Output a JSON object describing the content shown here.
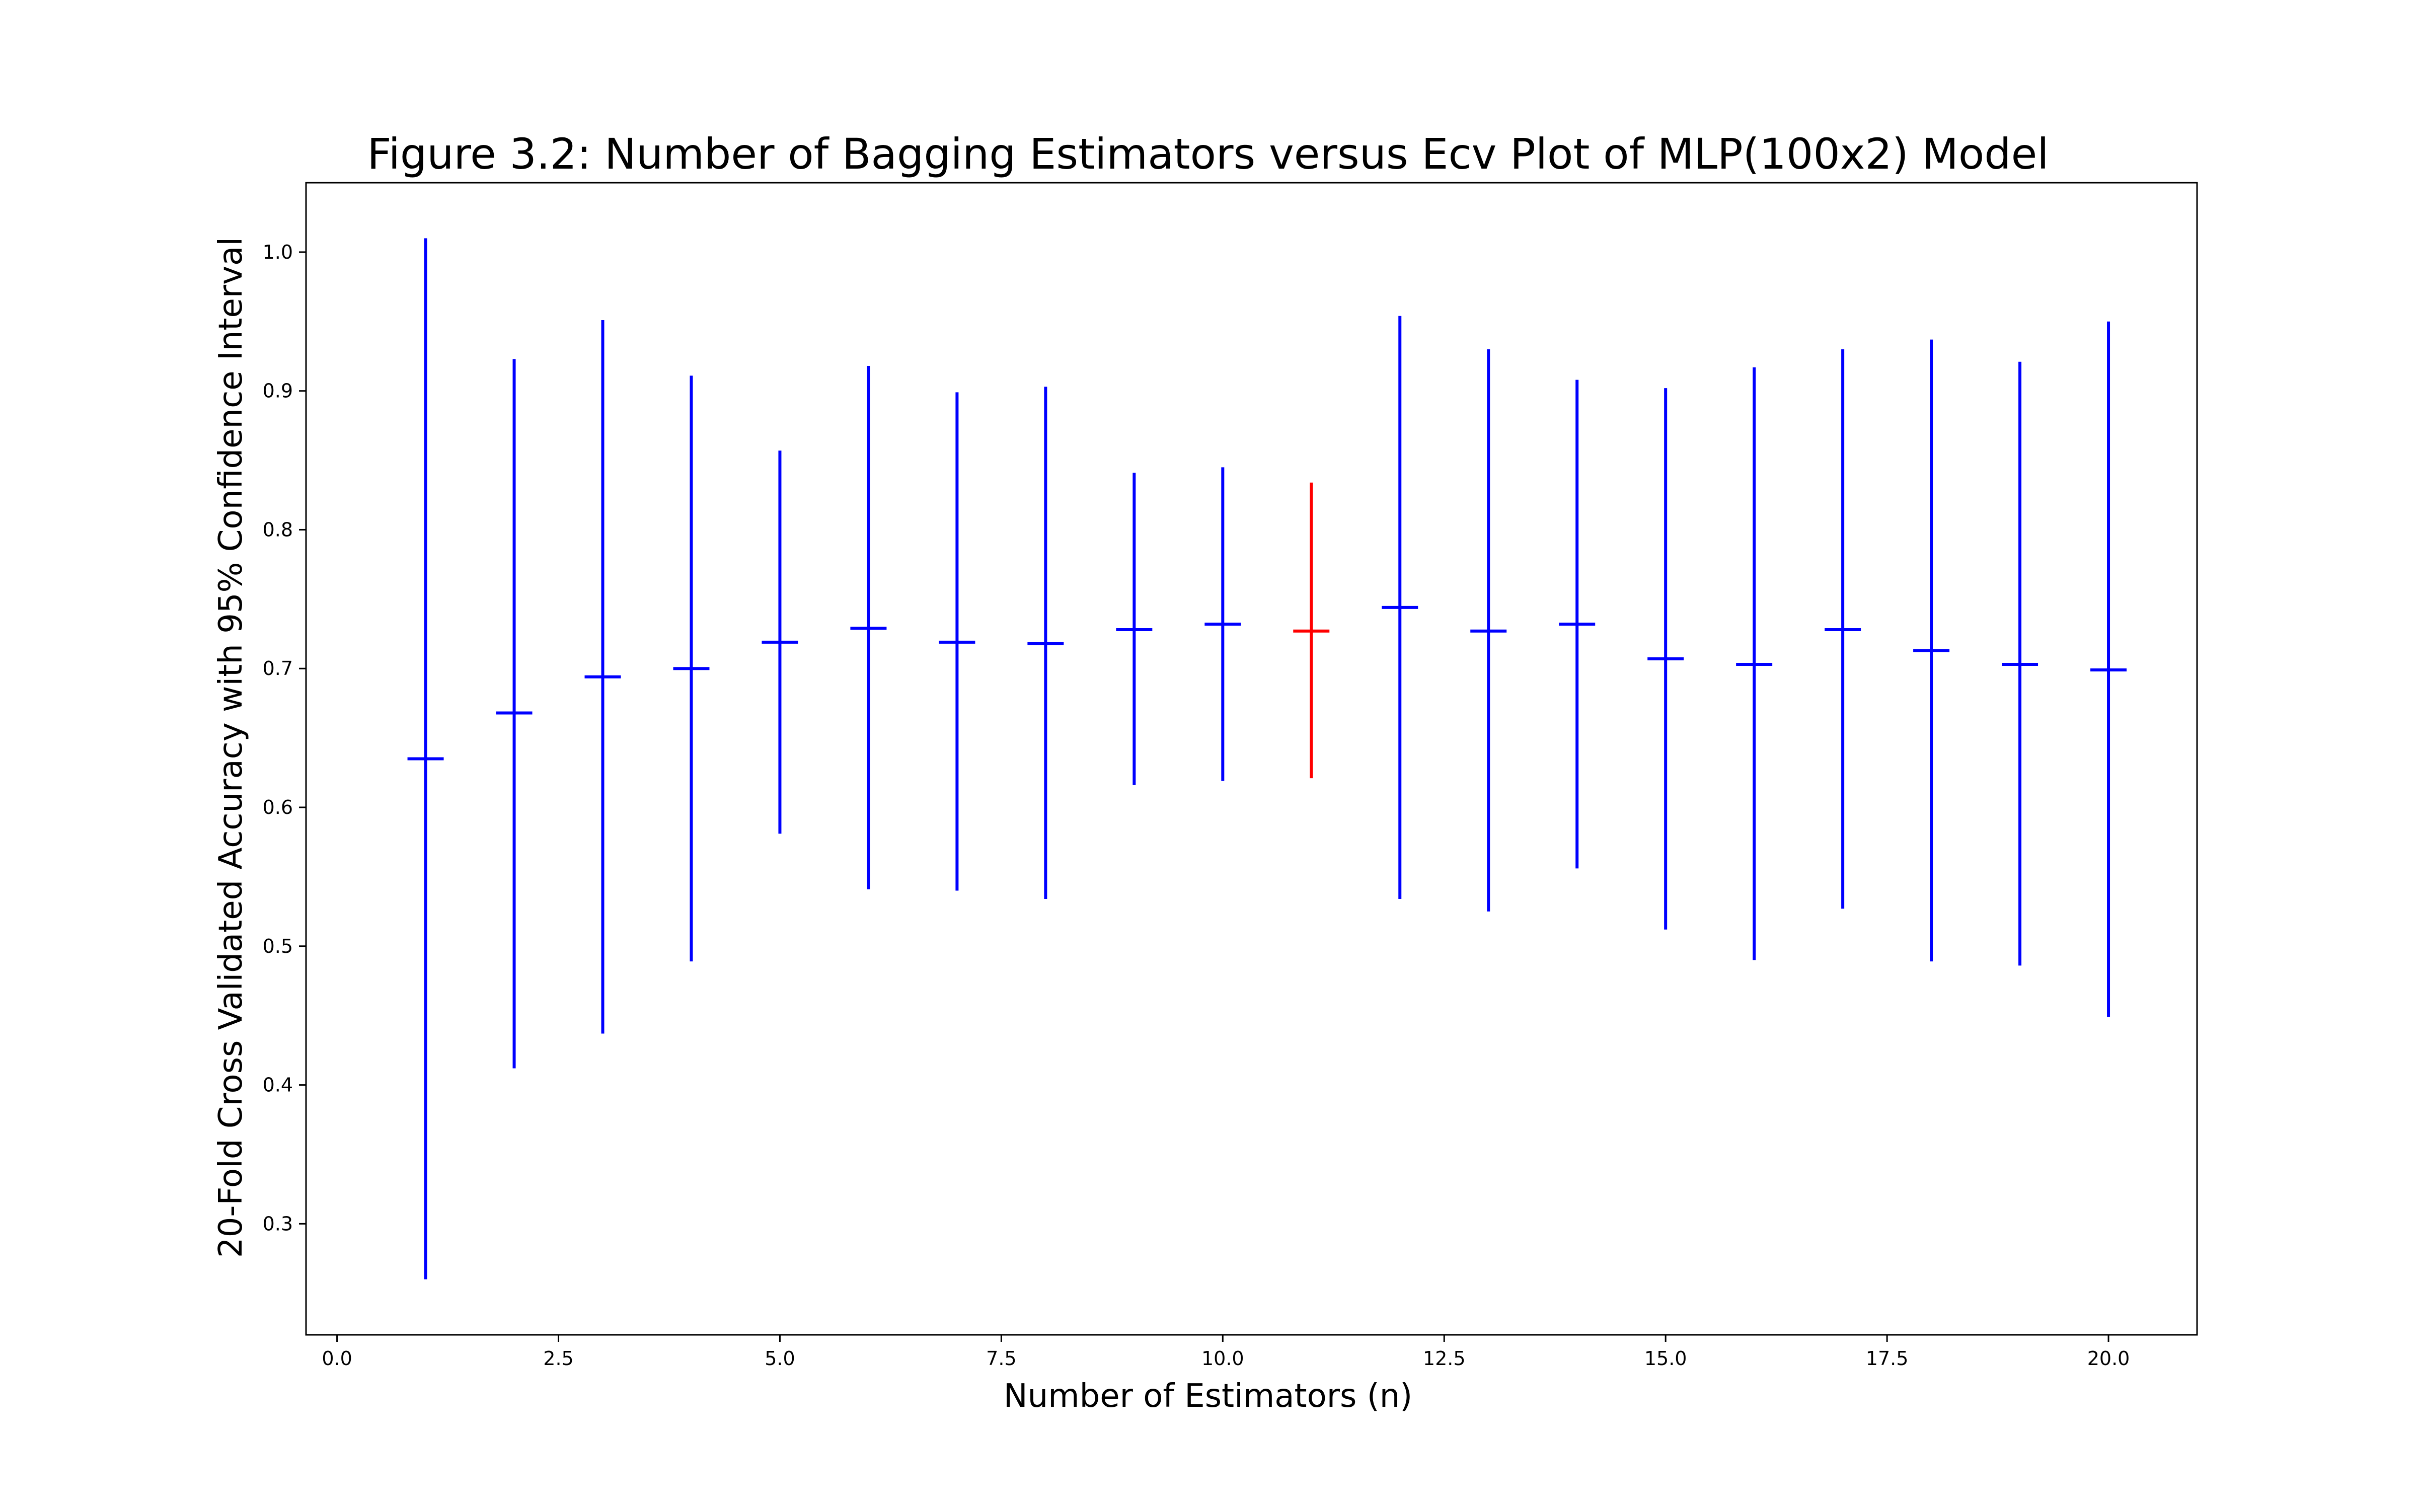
{
  "chart_data": {
    "type": "errorbar",
    "title": "Figure 3.2: Number of Bagging Estimators versus Ecv Plot of MLP(100x2) Model",
    "xlabel": "Number of Estimators (n)",
    "ylabel": "20-Fold Cross Validated Accuracy with 95% Confidence Interval",
    "xlim": [
      -0.35,
      21.0
    ],
    "ylim": [
      0.22,
      1.05
    ],
    "xticks": [
      0.0,
      2.5,
      5.0,
      7.5,
      10.0,
      12.5,
      15.0,
      17.5,
      20.0
    ],
    "xtick_labels": [
      "0.0",
      "2.5",
      "5.0",
      "7.5",
      "10.0",
      "12.5",
      "15.0",
      "17.5",
      "20.0"
    ],
    "yticks": [
      0.3,
      0.4,
      0.5,
      0.6,
      0.7,
      0.8,
      0.9,
      1.0
    ],
    "ytick_labels": [
      "0.3",
      "0.4",
      "0.5",
      "0.6",
      "0.7",
      "0.8",
      "0.9",
      "1.0"
    ],
    "grid": false,
    "legend": "none",
    "default_color": "#0000ff",
    "highlight_color": "#ff0000",
    "points": [
      {
        "x": 1,
        "mean": 0.635,
        "low": 0.26,
        "high": 1.01,
        "highlight": false
      },
      {
        "x": 2,
        "mean": 0.668,
        "low": 0.412,
        "high": 0.923,
        "highlight": false
      },
      {
        "x": 3,
        "mean": 0.694,
        "low": 0.437,
        "high": 0.951,
        "highlight": false
      },
      {
        "x": 4,
        "mean": 0.7,
        "low": 0.489,
        "high": 0.911,
        "highlight": false
      },
      {
        "x": 5,
        "mean": 0.719,
        "low": 0.581,
        "high": 0.857,
        "highlight": false
      },
      {
        "x": 6,
        "mean": 0.729,
        "low": 0.541,
        "high": 0.918,
        "highlight": false
      },
      {
        "x": 7,
        "mean": 0.719,
        "low": 0.54,
        "high": 0.899,
        "highlight": false
      },
      {
        "x": 8,
        "mean": 0.718,
        "low": 0.534,
        "high": 0.903,
        "highlight": false
      },
      {
        "x": 9,
        "mean": 0.728,
        "low": 0.616,
        "high": 0.841,
        "highlight": false
      },
      {
        "x": 10,
        "mean": 0.732,
        "low": 0.619,
        "high": 0.845,
        "highlight": false
      },
      {
        "x": 11,
        "mean": 0.727,
        "low": 0.621,
        "high": 0.834,
        "highlight": true
      },
      {
        "x": 12,
        "mean": 0.744,
        "low": 0.534,
        "high": 0.954,
        "highlight": false
      },
      {
        "x": 13,
        "mean": 0.727,
        "low": 0.525,
        "high": 0.93,
        "highlight": false
      },
      {
        "x": 14,
        "mean": 0.732,
        "low": 0.556,
        "high": 0.908,
        "highlight": false
      },
      {
        "x": 15,
        "mean": 0.707,
        "low": 0.512,
        "high": 0.902,
        "highlight": false
      },
      {
        "x": 16,
        "mean": 0.703,
        "low": 0.49,
        "high": 0.917,
        "highlight": false
      },
      {
        "x": 17,
        "mean": 0.728,
        "low": 0.527,
        "high": 0.93,
        "highlight": false
      },
      {
        "x": 18,
        "mean": 0.713,
        "low": 0.489,
        "high": 0.937,
        "highlight": false
      },
      {
        "x": 19,
        "mean": 0.703,
        "low": 0.486,
        "high": 0.921,
        "highlight": false
      },
      {
        "x": 20,
        "mean": 0.699,
        "low": 0.449,
        "high": 0.95,
        "highlight": false
      }
    ]
  }
}
